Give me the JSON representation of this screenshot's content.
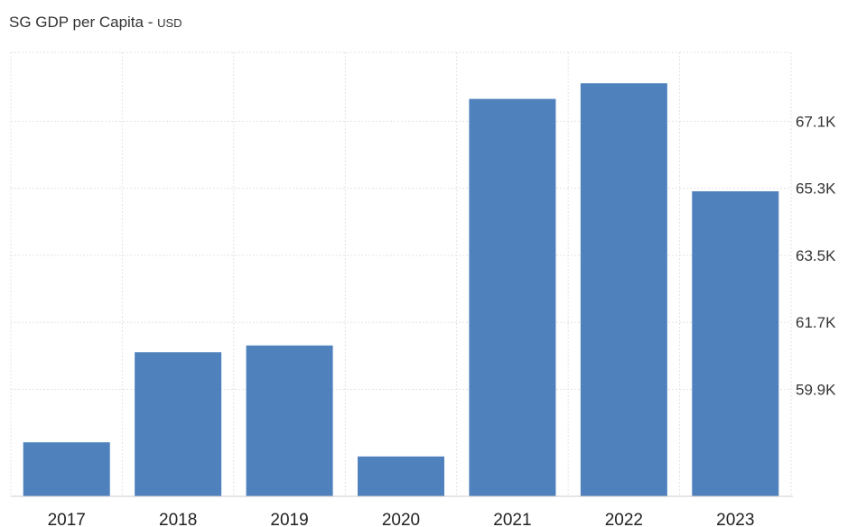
{
  "header": {
    "title": "SG GDP per Capita",
    "separator": " - ",
    "unit": "USD"
  },
  "chart_data": {
    "type": "bar",
    "title": "SG GDP per Capita - USD",
    "xlabel": "",
    "ylabel": "",
    "categories": [
      "2017",
      "2018",
      "2019",
      "2020",
      "2021",
      "2022",
      "2023"
    ],
    "values": [
      58480,
      60900,
      61080,
      58100,
      67700,
      68120,
      65220
    ],
    "ylim": [
      57030,
      68950
    ],
    "y_ticks": [
      59900,
      61700,
      63500,
      65300,
      67100
    ],
    "y_tick_labels": [
      "59.9K",
      "61.7K",
      "63.5K",
      "65.3K",
      "67.1K"
    ],
    "y_axis_side": "right",
    "grid": true,
    "legend": "none",
    "colors": {
      "bar": "#4f81bd",
      "grid": "#e3e3e3",
      "axis": "#cccccc"
    }
  }
}
